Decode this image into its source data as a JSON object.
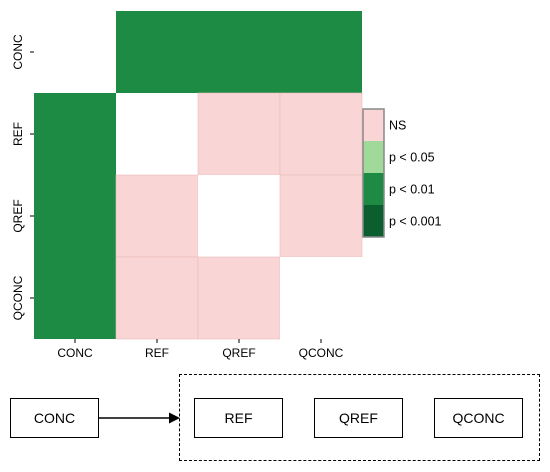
{
  "chart_data": {
    "type": "heatmap",
    "rows": [
      "CONC",
      "REF",
      "QREF",
      "QCONC"
    ],
    "columns": [
      "CONC",
      "REF",
      "QREF",
      "QCONC"
    ],
    "cells": [
      [
        "",
        "p < 0.01",
        "p < 0.01",
        "p < 0.01"
      ],
      [
        "p < 0.01",
        "",
        "NS",
        "NS"
      ],
      [
        "p < 0.01",
        "NS",
        "",
        "NS"
      ],
      [
        "p < 0.01",
        "NS",
        "NS",
        ""
      ]
    ],
    "legend": {
      "placement": "right",
      "entries": [
        {
          "label": "NS",
          "color": "#f9d6d5"
        },
        {
          "label": "p < 0.05",
          "color": "#a1d99b"
        },
        {
          "label": "p < 0.01",
          "color": "#1e8b45"
        },
        {
          "label": "p < 0.001",
          "color": "#0b5e2e"
        }
      ]
    },
    "diagonal_color": "#ffffff"
  },
  "diagram": {
    "source": "CONC",
    "targets": [
      "REF",
      "QREF",
      "QCONC"
    ]
  }
}
